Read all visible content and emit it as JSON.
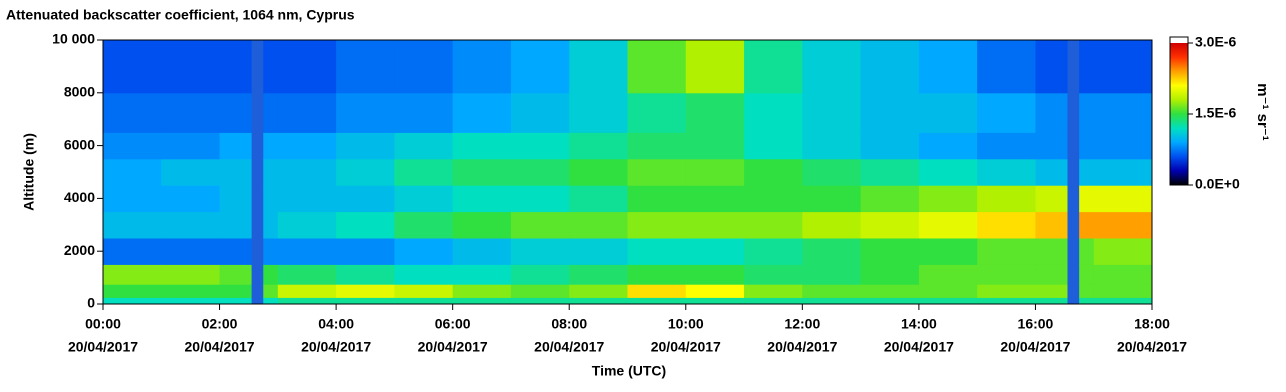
{
  "chart_data": {
    "type": "heatmap",
    "title": "Attenuated backscatter coefficient, 1064 nm, Cyprus",
    "x_label": "Time (UTC)",
    "y_label": "Altitude (m)",
    "colorbar_label": "m⁻¹ sr⁻¹",
    "xlim": [
      0,
      18
    ],
    "xticks": [
      {
        "value": 0,
        "label": [
          "00:00",
          "20/04/2017"
        ]
      },
      {
        "value": 2,
        "label": [
          "02:00",
          "20/04/2017"
        ]
      },
      {
        "value": 4,
        "label": [
          "04:00",
          "20/04/2017"
        ]
      },
      {
        "value": 6,
        "label": [
          "06:00",
          "20/04/2017"
        ]
      },
      {
        "value": 8,
        "label": [
          "08:00",
          "20/04/2017"
        ]
      },
      {
        "value": 10,
        "label": [
          "10:00",
          "20/04/2017"
        ]
      },
      {
        "value": 12,
        "label": [
          "12:00",
          "20/04/2017"
        ]
      },
      {
        "value": 14,
        "label": [
          "14:00",
          "20/04/2017"
        ]
      },
      {
        "value": 16,
        "label": [
          "16:00",
          "20/04/2017"
        ]
      },
      {
        "value": 18,
        "label": [
          "18:00",
          "20/04/2017"
        ]
      }
    ],
    "ylim": [
      0,
      10000
    ],
    "yticks": [
      0,
      2000,
      4000,
      6000,
      8000,
      {
        "value": 10000,
        "label": "10 000"
      }
    ],
    "clim": [
      0,
      3e-06
    ],
    "cticks": [
      {
        "value": 0,
        "label": "0.0E+0"
      },
      {
        "value": 1.5e-06,
        "label": "1.5E-6"
      },
      {
        "value": 3e-06,
        "label": "3.0E-6"
      }
    ],
    "colorscale": [
      "#000000",
      "#0000b0",
      "#0050f0",
      "#00a8ff",
      "#00e0c0",
      "#30e040",
      "#b0f000",
      "#ffff00",
      "#ffa000",
      "#ff3000",
      "#d00000"
    ],
    "over_color": "#ffffff",
    "missing_color": "#1e5ed8",
    "xbins": [
      0,
      1,
      2,
      2.55,
      2.75,
      3,
      4,
      5,
      6,
      7,
      8,
      9,
      10,
      11,
      12,
      13,
      14,
      15,
      16,
      16.55,
      16.75,
      17,
      18
    ],
    "ybins": [
      0,
      250,
      750,
      1500,
      2500,
      3500,
      4500,
      5500,
      6500,
      8000,
      10000
    ],
    "values": [
      [
        1.2e-06,
        1.5e-06,
        1.7e-06,
        7e-07,
        1e-06,
        9e-07,
        9e-07,
        8e-07,
        7e-07,
        6e-07
      ],
      [
        1.2e-06,
        1.5e-06,
        1.7e-06,
        7e-07,
        1e-06,
        9e-07,
        1e-06,
        8e-07,
        7e-07,
        6e-07
      ],
      [
        1.2e-06,
        1.5e-06,
        1.6e-06,
        7e-07,
        1e-06,
        1e-06,
        1e-06,
        9e-07,
        7e-07,
        6e-07
      ],
      [
        null,
        null,
        null,
        null,
        null,
        null,
        null,
        null,
        null,
        null
      ],
      [
        1.2e-06,
        1.6e-06,
        1.5e-06,
        8e-07,
        1e-06,
        1e-06,
        1e-06,
        9e-07,
        7e-07,
        6e-07
      ],
      [
        1.3e-06,
        1.9e-06,
        1.4e-06,
        8e-07,
        1.1e-06,
        1e-06,
        1e-06,
        9e-07,
        7e-07,
        6e-07
      ],
      [
        1.3e-06,
        2e-06,
        1.3e-06,
        8e-07,
        1.2e-06,
        1e-06,
        1.1e-06,
        1e-06,
        8e-07,
        7e-07
      ],
      [
        1.3e-06,
        1.9e-06,
        1.2e-06,
        9e-07,
        1.4e-06,
        1.1e-06,
        1.3e-06,
        1.1e-06,
        8e-07,
        7e-07
      ],
      [
        1.3e-06,
        1.7e-06,
        1.2e-06,
        1e-06,
        1.5e-06,
        1.2e-06,
        1.4e-06,
        1.2e-06,
        9e-07,
        8e-07
      ],
      [
        1.3e-06,
        1.6e-06,
        1.3e-06,
        1.1e-06,
        1.6e-06,
        1.2e-06,
        1.4e-06,
        1.2e-06,
        1e-06,
        9e-07
      ],
      [
        1.3e-06,
        1.7e-06,
        1.4e-06,
        1.1e-06,
        1.6e-06,
        1.3e-06,
        1.5e-06,
        1.3e-06,
        1.1e-06,
        1.1e-06
      ],
      [
        1.3e-06,
        2.2e-06,
        1.5e-06,
        1.2e-06,
        1.7e-06,
        1.5e-06,
        1.6e-06,
        1.4e-06,
        1.3e-06,
        1.6e-06
      ],
      [
        1.3e-06,
        2.1e-06,
        1.5e-06,
        1.2e-06,
        1.7e-06,
        1.5e-06,
        1.6e-06,
        1.4e-06,
        1.4e-06,
        1.8e-06
      ],
      [
        1.3e-06,
        1.7e-06,
        1.4e-06,
        1.3e-06,
        1.7e-06,
        1.5e-06,
        1.5e-06,
        1.2e-06,
        1.2e-06,
        1.3e-06
      ],
      [
        1.3e-06,
        1.6e-06,
        1.4e-06,
        1.4e-06,
        1.8e-06,
        1.5e-06,
        1.4e-06,
        1.1e-06,
        1.1e-06,
        1.1e-06
      ],
      [
        1.3e-06,
        1.6e-06,
        1.5e-06,
        1.5e-06,
        1.9e-06,
        1.6e-06,
        1.3e-06,
        1e-06,
        1e-06,
        1e-06
      ],
      [
        1.3e-06,
        1.6e-06,
        1.6e-06,
        1.5e-06,
        2e-06,
        1.7e-06,
        1.2e-06,
        9e-07,
        1e-06,
        9e-07
      ],
      [
        1.3e-06,
        1.7e-06,
        1.6e-06,
        1.6e-06,
        2.2e-06,
        1.8e-06,
        1.1e-06,
        8e-07,
        9e-07,
        7e-07
      ],
      [
        1.3e-06,
        1.7e-06,
        1.6e-06,
        1.6e-06,
        2.3e-06,
        1.9e-06,
        1e-06,
        8e-07,
        8e-07,
        6e-07
      ],
      [
        null,
        null,
        null,
        null,
        null,
        null,
        null,
        null,
        null,
        null
      ],
      [
        1.3e-06,
        1.6e-06,
        1.6e-06,
        1.6e-06,
        2.4e-06,
        2e-06,
        1e-06,
        8e-07,
        8e-07,
        6e-07
      ],
      [
        1.3e-06,
        1.6e-06,
        1.6e-06,
        1.7e-06,
        2.4e-06,
        2e-06,
        1e-06,
        8e-07,
        8e-07,
        6e-07
      ]
    ]
  }
}
